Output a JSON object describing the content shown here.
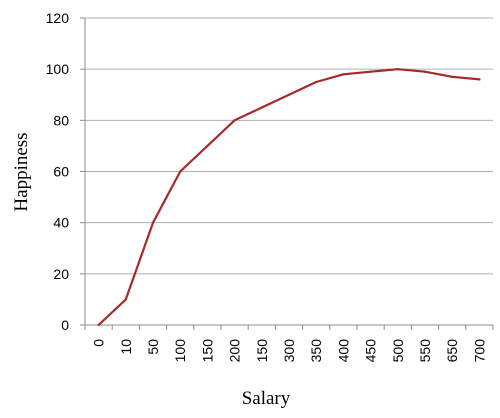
{
  "chart_data": {
    "type": "line",
    "title": "",
    "xlabel": "Salary",
    "ylabel": "Happiness",
    "categories": [
      "0",
      "10",
      "50",
      "100",
      "150",
      "200",
      "150",
      "300",
      "350",
      "400",
      "450",
      "500",
      "550",
      "650",
      "700"
    ],
    "series": [
      {
        "values": [
          0,
          10,
          40,
          60,
          70,
          80,
          85,
          90,
          95,
          98,
          99,
          100,
          99,
          97,
          96
        ]
      }
    ],
    "ylim": [
      0,
      120
    ],
    "yticks": [
      0,
      20,
      40,
      60,
      80,
      100,
      120
    ],
    "grid": true,
    "legend": "none",
    "colors": {
      "series": "#a52a2a",
      "grid": "#b0b0b0",
      "axis": "#8c8c8c"
    }
  }
}
